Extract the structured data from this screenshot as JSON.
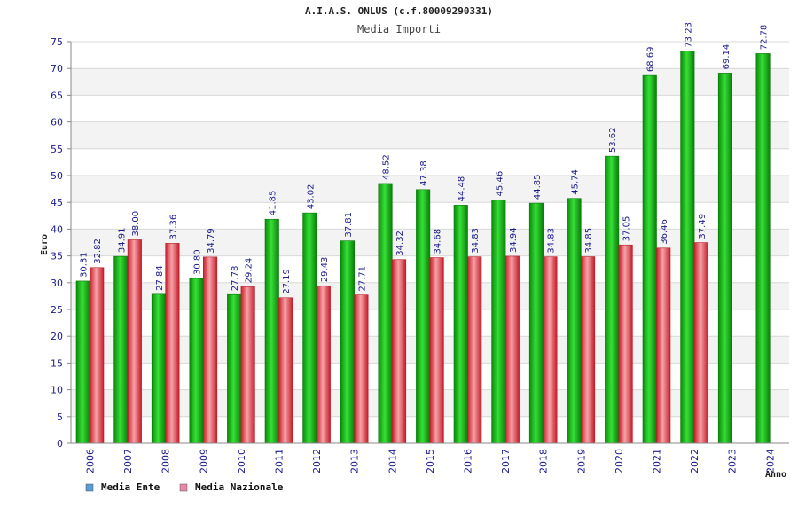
{
  "header": {
    "title": "A.I.A.S. ONLUS (c.f.80009290331)",
    "subtitle": "Media Importi"
  },
  "chart_data": {
    "type": "bar",
    "title": "Media Importi",
    "xlabel": "Anno",
    "ylabel": "Euro",
    "ylim": [
      0,
      75
    ],
    "yticks": [
      0,
      5,
      10,
      15,
      20,
      25,
      30,
      35,
      40,
      45,
      50,
      55,
      60,
      65,
      70,
      75
    ],
    "grid": true,
    "legend_position": "bottom-left",
    "categories": [
      "2006",
      "2007",
      "2008",
      "2009",
      "2010",
      "2011",
      "2012",
      "2013",
      "2014",
      "2015",
      "2016",
      "2017",
      "2018",
      "2019",
      "2020",
      "2021",
      "2022",
      "2023",
      "2024"
    ],
    "series": [
      {
        "name": "Media Ente",
        "color": "#1fb81f",
        "legend_color": "#5b9bd5",
        "values": [
          30.31,
          34.91,
          27.84,
          30.8,
          27.78,
          41.85,
          43.02,
          37.81,
          48.52,
          47.38,
          44.48,
          45.46,
          44.85,
          45.74,
          53.62,
          68.69,
          73.23,
          69.14,
          72.78
        ],
        "labels": [
          "30.31",
          "34.91",
          "27.84",
          "30.80",
          "27.78",
          "41.85",
          "43.02",
          "37.81",
          "48.52",
          "47.38",
          "44.48",
          "45.46",
          "44.85",
          "45.74",
          "53.62",
          "68.69",
          "73.23",
          "69.14",
          "72.78"
        ]
      },
      {
        "name": "Media Nazionale",
        "color": "#e8505a",
        "legend_color": "#e887a8",
        "values": [
          32.82,
          38.0,
          37.36,
          34.79,
          29.24,
          27.19,
          29.43,
          27.71,
          34.32,
          34.68,
          34.83,
          34.94,
          34.83,
          34.85,
          37.05,
          36.46,
          37.49,
          null,
          null
        ],
        "labels": [
          "32.82",
          "38.00",
          "37.36",
          "34.79",
          "29.24",
          "27.19",
          "29.43",
          "27.71",
          "34.32",
          "34.68",
          "34.83",
          "34.94",
          "34.83",
          "34.85",
          "37.05",
          "36.46",
          "37.49",
          null,
          null
        ]
      }
    ]
  }
}
